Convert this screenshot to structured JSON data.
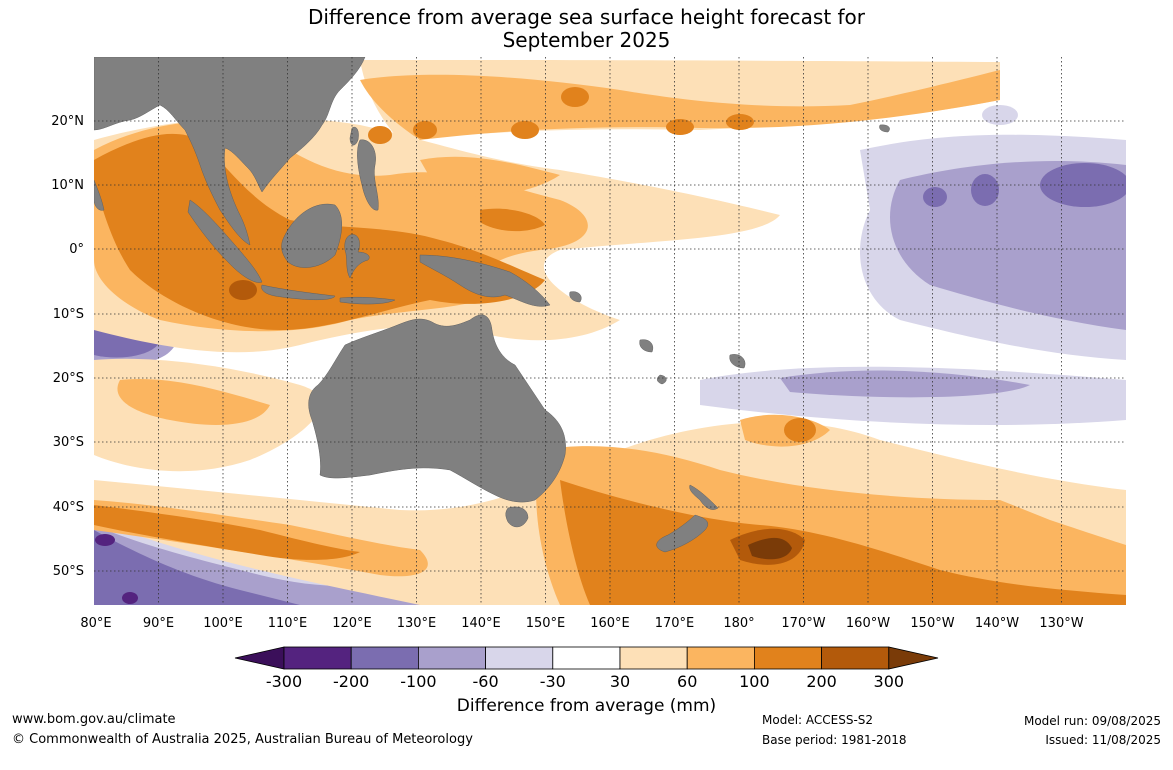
{
  "title_line1": "Difference from average sea surface height forecast for",
  "title_line2": "September 2025",
  "lat_labels": [
    "20°N",
    "10°N",
    "0°",
    "10°S",
    "20°S",
    "30°S",
    "40°S",
    "50°S"
  ],
  "lon_labels": [
    "80°E",
    "90°E",
    "100°E",
    "110°E",
    "120°E",
    "130°E",
    "140°E",
    "150°E",
    "160°E",
    "170°E",
    "180°",
    "170°W",
    "160°W",
    "150°W",
    "140°W",
    "130°W"
  ],
  "legend": {
    "title": "Difference from average (mm)",
    "ticks": [
      "-300",
      "-200",
      "-100",
      "-60",
      "-30",
      "30",
      "60",
      "100",
      "200",
      "300"
    ],
    "colors": [
      "#3b0f5a",
      "#54237f",
      "#7b6db0",
      "#a9a0cc",
      "#d8d6ea",
      "#ffffff",
      "#fde0b7",
      "#fbb560",
      "#e1821c",
      "#b35a0b",
      "#7a3b08"
    ]
  },
  "footer": {
    "url": "www.bom.gov.au/climate",
    "copyright": "© Commonwealth of Australia 2025, Australian Bureau of Meteorology",
    "model": "Model: ACCESS-S2",
    "base_period": "Base period: 1981-2018",
    "model_run": "Model run: 09/08/2025",
    "issued": "Issued: 11/08/2025"
  },
  "colors": {
    "land": "#808080",
    "grid": "#333333"
  }
}
